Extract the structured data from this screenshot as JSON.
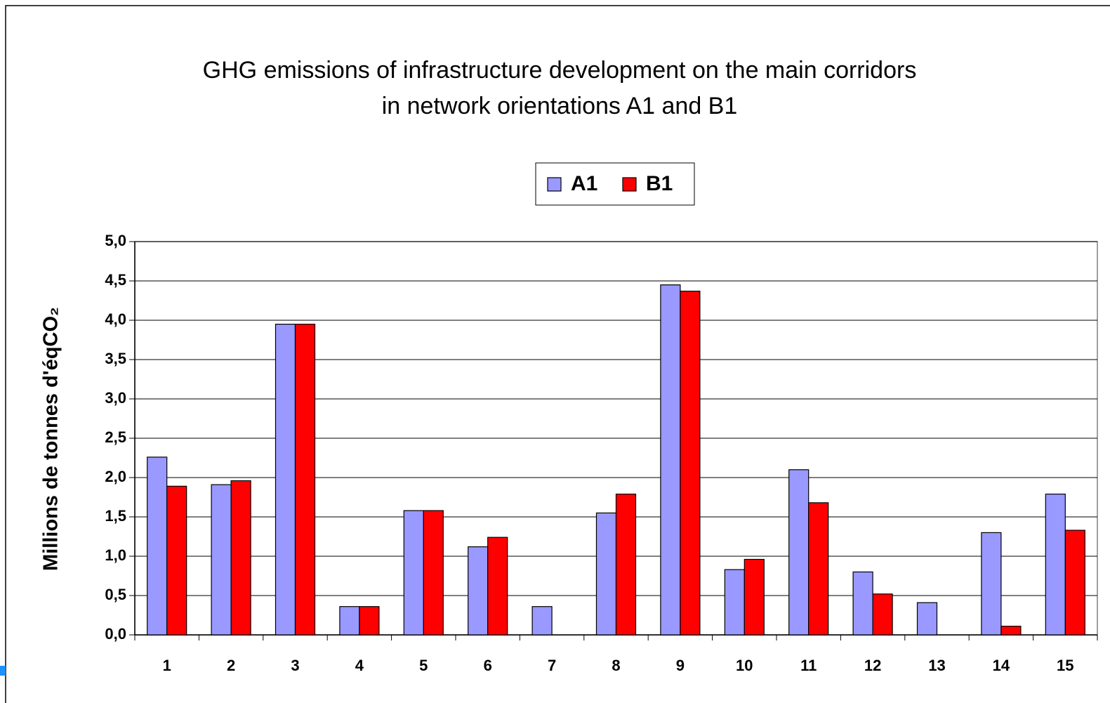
{
  "chart_data": {
    "type": "bar",
    "title": [
      "GHG emissions of infrastructure development on the main corridors",
      "in network orientations A1 and B1"
    ],
    "y_label": "Millions de tonnes d'éqCO₂",
    "categories": [
      "1",
      "2",
      "3",
      "4",
      "5",
      "6",
      "7",
      "8",
      "9",
      "10",
      "11",
      "12",
      "13",
      "14",
      "15"
    ],
    "series": [
      {
        "name": "A1",
        "color": "#9999ff",
        "values": [
          2.26,
          1.91,
          3.95,
          0.36,
          1.58,
          1.12,
          0.36,
          1.55,
          4.45,
          0.83,
          2.1,
          0.8,
          0.41,
          1.3,
          1.79
        ]
      },
      {
        "name": "B1",
        "color": "#ff0000",
        "values": [
          1.89,
          1.96,
          3.95,
          0.36,
          1.58,
          1.24,
          0,
          1.79,
          4.37,
          0.96,
          1.68,
          0.52,
          0,
          0.11,
          1.33
        ]
      }
    ],
    "ylim": [
      0,
      5
    ],
    "yticks": [
      {
        "value": 0,
        "label": "0,0"
      },
      {
        "value": 0.5,
        "label": "0,5"
      },
      {
        "value": 1,
        "label": "1,0"
      },
      {
        "value": 1.5,
        "label": "1,5"
      },
      {
        "value": 2,
        "label": "2,0"
      },
      {
        "value": 2.5,
        "label": "2,5"
      },
      {
        "value": 3,
        "label": "3,0"
      },
      {
        "value": 3.5,
        "label": "3,5"
      },
      {
        "value": 4,
        "label": "4,0"
      },
      {
        "value": 4.5,
        "label": "4,5"
      },
      {
        "value": 5,
        "label": "5,0"
      }
    ],
    "grid": true,
    "legend": "top"
  }
}
